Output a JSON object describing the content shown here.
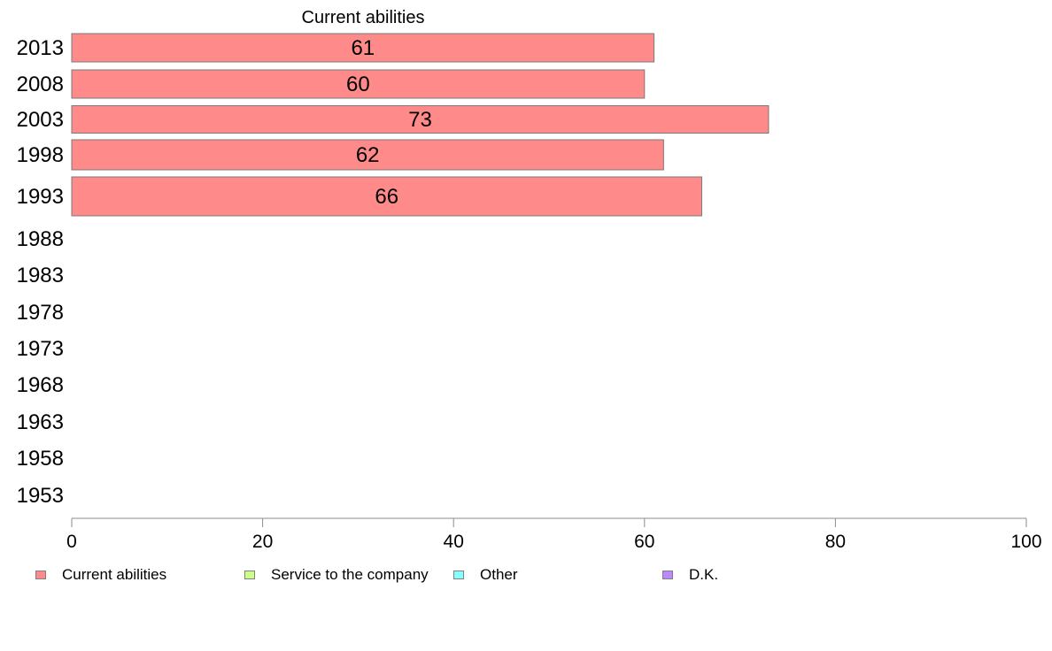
{
  "chart_data": {
    "type": "bar",
    "orientation": "horizontal",
    "categories": [
      "2013",
      "2008",
      "2003",
      "1998",
      "1993",
      "1988",
      "1983",
      "1978",
      "1973",
      "1968",
      "1963",
      "1958",
      "1953"
    ],
    "series": [
      {
        "name": "Current abilities",
        "color": "#ff8a8a",
        "values": [
          61,
          60,
          73,
          62,
          66,
          null,
          null,
          null,
          null,
          null,
          null,
          null,
          null
        ]
      },
      {
        "name": "Service to the company",
        "color": "#ccff88",
        "values": [
          null,
          null,
          null,
          null,
          null,
          null,
          null,
          null,
          null,
          null,
          null,
          null,
          null
        ]
      },
      {
        "name": "Other",
        "color": "#88ffff",
        "values": [
          null,
          null,
          null,
          null,
          null,
          null,
          null,
          null,
          null,
          null,
          null,
          null,
          null
        ]
      },
      {
        "name": "D.K.",
        "color": "#bb88ff",
        "values": [
          null,
          null,
          null,
          null,
          null,
          null,
          null,
          null,
          null,
          null,
          null,
          null,
          null
        ]
      }
    ],
    "data_labels": [
      "61",
      "60",
      "73",
      "62",
      "66"
    ],
    "title": "Current abilities",
    "xlabel": "",
    "ylabel": "",
    "xlim": [
      0,
      100
    ],
    "xticks": [
      0,
      20,
      40,
      60,
      80,
      100
    ],
    "grid": false,
    "legend_position": "bottom"
  },
  "legend": {
    "items": [
      {
        "label": "Current abilities",
        "color": "#ff8a8a"
      },
      {
        "label": "Service to the company",
        "color": "#ccff88"
      },
      {
        "label": "Other",
        "color": "#88ffff"
      },
      {
        "label": "D.K.",
        "color": "#bb88ff"
      }
    ]
  }
}
